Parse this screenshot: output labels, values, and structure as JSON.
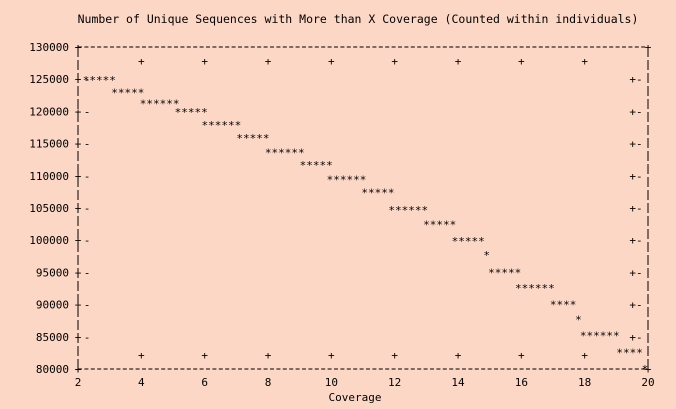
{
  "chart_data": {
    "type": "scatter",
    "style": "gnuplot dumb terminal (ASCII)",
    "title": "Number of Unique Sequences with More than X Coverage (Counted within individuals)",
    "xlabel": "Coverage",
    "ylabel": "",
    "xlim": [
      2,
      20
    ],
    "ylim": [
      80000,
      130000
    ],
    "x_ticks": [
      "2",
      "4",
      "6",
      "8",
      "10",
      "12",
      "14",
      "16",
      "18",
      "20"
    ],
    "x_tick_values": [
      2,
      4,
      6,
      8,
      10,
      12,
      14,
      16,
      18,
      20
    ],
    "y_ticks": [
      "130000",
      "125000",
      "120000",
      "115000",
      "110000",
      "105000",
      "100000",
      "95000",
      "90000",
      "85000",
      "80000"
    ],
    "y_tick_values": [
      130000,
      125000,
      120000,
      115000,
      110000,
      105000,
      100000,
      95000,
      90000,
      85000,
      80000
    ],
    "grid": false,
    "legend": "none",
    "series": [
      {
        "marker": "*",
        "points": [
          {
            "x_start": 2.15,
            "x_end": 2.95,
            "y": 124900
          },
          {
            "x_start": 3.05,
            "x_end": 3.85,
            "y": 122900
          },
          {
            "x_start": 3.95,
            "x_end": 4.95,
            "y": 121200
          },
          {
            "x_start": 5.05,
            "x_end": 5.85,
            "y": 119900
          },
          {
            "x_start": 5.9,
            "x_end": 6.9,
            "y": 117900
          },
          {
            "x_start": 7.0,
            "x_end": 7.8,
            "y": 115900
          },
          {
            "x_start": 7.9,
            "x_end": 8.9,
            "y": 113600
          },
          {
            "x_start": 9.0,
            "x_end": 9.8,
            "y": 111700
          },
          {
            "x_start": 9.85,
            "x_end": 10.85,
            "y": 109400
          },
          {
            "x_start": 10.95,
            "x_end": 11.75,
            "y": 107400
          },
          {
            "x_start": 11.8,
            "x_end": 12.8,
            "y": 104700
          },
          {
            "x_start": 12.9,
            "x_end": 13.7,
            "y": 102400
          },
          {
            "x_start": 13.8,
            "x_end": 14.6,
            "y": 99900
          },
          {
            "x_start": 14.8,
            "x_end": 14.8,
            "y": 97700
          },
          {
            "x_start": 14.95,
            "x_end": 15.75,
            "y": 95000
          },
          {
            "x_start": 15.8,
            "x_end": 16.8,
            "y": 92600
          },
          {
            "x_start": 16.9,
            "x_end": 17.5,
            "y": 90000
          },
          {
            "x_start": 17.7,
            "x_end": 17.7,
            "y": 87700
          },
          {
            "x_start": 17.85,
            "x_end": 18.85,
            "y": 85200
          },
          {
            "x_start": 19.0,
            "x_end": 19.6,
            "y": 82600
          },
          {
            "x_start": 19.8,
            "x_end": 19.8,
            "y": 80000
          }
        ]
      }
    ]
  }
}
